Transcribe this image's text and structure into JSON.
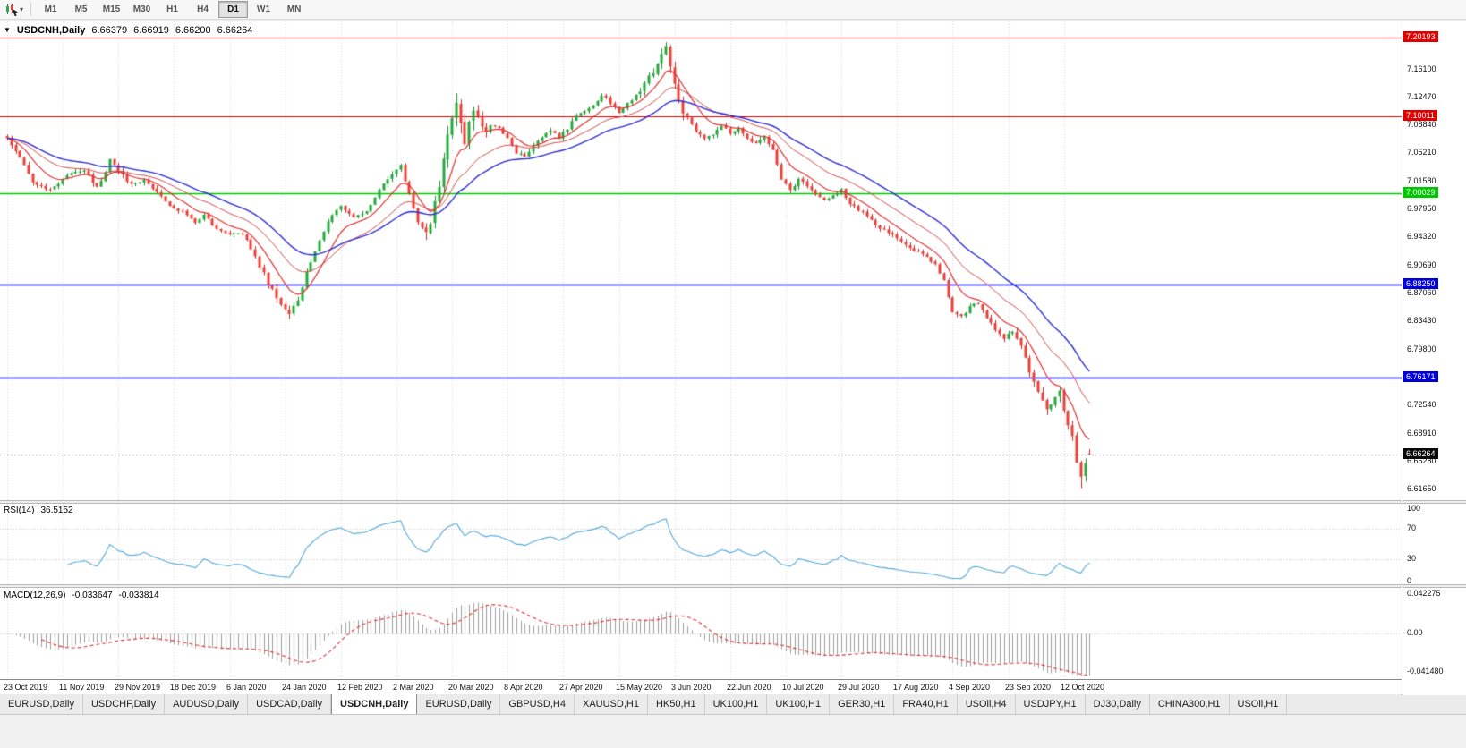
{
  "toolbar": {
    "dropdown_glyph": "▾",
    "timeframes": [
      "M1",
      "M5",
      "M15",
      "M30",
      "H1",
      "H4",
      "D1",
      "W1",
      "MN"
    ],
    "active_timeframe": "D1"
  },
  "chart": {
    "corner_glyph": "▼",
    "title": "USDCNH,Daily",
    "open": "6.66379",
    "high": "6.66919",
    "low": "6.66200",
    "close": "6.66264",
    "bid_label": "6.66264",
    "bid_value": 6.66264,
    "price_min": 6.603,
    "price_max": 7.223,
    "axis_labels": [
      "7.16100",
      "7.12470",
      "7.08840",
      "7.05210",
      "7.01580",
      "6.97950",
      "6.94320",
      "6.90690",
      "6.87060",
      "6.83430",
      "6.79800",
      "6.72540",
      "6.68910",
      "6.65280",
      "6.61650"
    ],
    "hlines": [
      {
        "value": 7.20193,
        "label": "7.20193",
        "color": "#e00000"
      },
      {
        "value": 7.10011,
        "label": "7.10011",
        "color": "#e00000"
      },
      {
        "value": 7.00029,
        "label": "7.00029",
        "color": "#00c800"
      },
      {
        "value": 6.8825,
        "label": "6.88250",
        "color": "#0000dc"
      },
      {
        "value": 6.76171,
        "label": "6.76171",
        "color": "#0000dc"
      }
    ],
    "date_labels": [
      "23 Oct 2019",
      "11 Nov 2019",
      "29 Nov 2019",
      "18 Dec 2019",
      "6 Jan 2020",
      "24 Jan 2020",
      "12 Feb 2020",
      "2 Mar 2020",
      "20 Mar 2020",
      "8 Apr 2020",
      "27 Apr 2020",
      "15 May 2020",
      "3 Jun 2020",
      "22 Jun 2020",
      "10 Jul 2020",
      "29 Jul 2020",
      "17 Aug 2020",
      "4 Sep 2020",
      "23 Sep 2020",
      "12 Oct 2020"
    ]
  },
  "rsi": {
    "name": "RSI(14)",
    "value": "36.5152",
    "axis_labels": [
      "100",
      "70",
      "30",
      "0"
    ],
    "levels": [
      70,
      30
    ],
    "line_color": "#53a8da"
  },
  "macd": {
    "name": "MACD(12,26,9)",
    "value_main": "-0.033647",
    "value_signal": "-0.033814",
    "axis_labels": [
      "0.042275",
      "0.00",
      "-0.041480"
    ],
    "range": {
      "min": -0.0462,
      "max": 0.0465
    },
    "histogram_color": "#9e9e9e",
    "signal_color": "#e03232"
  },
  "tabs": {
    "items": [
      {
        "label": "EURUSD,Daily",
        "active": false
      },
      {
        "label": "USDCHF,Daily",
        "active": false
      },
      {
        "label": "AUDUSD,Daily",
        "active": false
      },
      {
        "label": "USDCAD,Daily",
        "active": false
      },
      {
        "label": "USDCNH,Daily",
        "active": true
      },
      {
        "label": "EURUSD,Daily",
        "active": false
      },
      {
        "label": "GBPUSD,H4",
        "active": false
      },
      {
        "label": "XAUUSD,H1",
        "active": false
      },
      {
        "label": "HK50,H1",
        "active": false
      },
      {
        "label": "UK100,H1",
        "active": false
      },
      {
        "label": "UK100,H1",
        "active": false
      },
      {
        "label": "GER30,H1",
        "active": false
      },
      {
        "label": "FRA40,H1",
        "active": false
      },
      {
        "label": "USOil,H4",
        "active": false
      },
      {
        "label": "USDJPY,H1",
        "active": false
      },
      {
        "label": "DJ30,Daily",
        "active": false
      },
      {
        "label": "CHINA300,H1",
        "active": false
      },
      {
        "label": "USOil,H1",
        "active": false
      }
    ]
  },
  "chart_data": {
    "type": "candlestick",
    "symbol": "USDCNH",
    "timeframe": "Daily",
    "bars": 254,
    "bars_per_x_tick": 13,
    "x_tick_labels": [
      "23 Oct 2019",
      "11 Nov 2019",
      "29 Nov 2019",
      "18 Dec 2019",
      "6 Jan 2020",
      "24 Jan 2020",
      "12 Feb 2020",
      "2 Mar 2020",
      "20 Mar 2020",
      "8 Apr 2020",
      "27 Apr 2020",
      "15 May 2020",
      "3 Jun 2020",
      "22 Jun 2020",
      "10 Jul 2020",
      "29 Jul 2020",
      "17 Aug 2020",
      "4 Sep 2020",
      "23 Sep 2020",
      "12 Oct 2020"
    ],
    "price_axis": {
      "min": 6.603,
      "max": 7.223
    },
    "last_ohlc": {
      "open": 6.66379,
      "high": 6.66919,
      "low": 6.662,
      "close": 6.66264
    },
    "horizontal_levels": [
      7.20193,
      7.10011,
      7.00029,
      6.8825,
      6.76171
    ],
    "close_anchors": [
      [
        0,
        7.072
      ],
      [
        3,
        7.046
      ],
      [
        6,
        7.016
      ],
      [
        9,
        7.004
      ],
      [
        12,
        7.012
      ],
      [
        15,
        7.028
      ],
      [
        18,
        7.031
      ],
      [
        21,
        7.008
      ],
      [
        24,
        7.042
      ],
      [
        26,
        7.028
      ],
      [
        29,
        7.012
      ],
      [
        32,
        7.018
      ],
      [
        35,
        7.002
      ],
      [
        38,
        6.986
      ],
      [
        41,
        6.976
      ],
      [
        44,
        6.962
      ],
      [
        46,
        6.972
      ],
      [
        49,
        6.955
      ],
      [
        52,
        6.946
      ],
      [
        55,
        6.949
      ],
      [
        58,
        6.918
      ],
      [
        61,
        6.885
      ],
      [
        64,
        6.858
      ],
      [
        66,
        6.845
      ],
      [
        68,
        6.864
      ],
      [
        70,
        6.896
      ],
      [
        73,
        6.938
      ],
      [
        76,
        6.974
      ],
      [
        78,
        6.986
      ],
      [
        81,
        6.968
      ],
      [
        84,
        6.977
      ],
      [
        87,
        7.004
      ],
      [
        90,
        7.026
      ],
      [
        92,
        7.036
      ],
      [
        94,
        6.998
      ],
      [
        96,
        6.962
      ],
      [
        98,
        6.948
      ],
      [
        100,
        6.985
      ],
      [
        102,
        7.045
      ],
      [
        104,
        7.1
      ],
      [
        105,
        7.12
      ],
      [
        106,
        7.085
      ],
      [
        107,
        7.062
      ],
      [
        108,
        7.092
      ],
      [
        109,
        7.112
      ],
      [
        111,
        7.082
      ],
      [
        113,
        7.088
      ],
      [
        115,
        7.085
      ],
      [
        117,
        7.072
      ],
      [
        119,
        7.054
      ],
      [
        121,
        7.047
      ],
      [
        124,
        7.07
      ],
      [
        127,
        7.082
      ],
      [
        129,
        7.073
      ],
      [
        131,
        7.085
      ],
      [
        133,
        7.102
      ],
      [
        135,
        7.108
      ],
      [
        137,
        7.115
      ],
      [
        139,
        7.128
      ],
      [
        141,
        7.118
      ],
      [
        143,
        7.103
      ],
      [
        145,
        7.117
      ],
      [
        147,
        7.128
      ],
      [
        149,
        7.14
      ],
      [
        151,
        7.158
      ],
      [
        153,
        7.18
      ],
      [
        154,
        7.193
      ],
      [
        155,
        7.163
      ],
      [
        156,
        7.138
      ],
      [
        157,
        7.118
      ],
      [
        159,
        7.098
      ],
      [
        161,
        7.082
      ],
      [
        163,
        7.072
      ],
      [
        165,
        7.076
      ],
      [
        167,
        7.088
      ],
      [
        169,
        7.078
      ],
      [
        171,
        7.084
      ],
      [
        173,
        7.072
      ],
      [
        175,
        7.064
      ],
      [
        177,
        7.072
      ],
      [
        179,
        7.055
      ],
      [
        181,
        7.018
      ],
      [
        183,
        7.004
      ],
      [
        185,
        7.018
      ],
      [
        187,
        7.01
      ],
      [
        189,
        6.998
      ],
      [
        191,
        6.99
      ],
      [
        193,
        6.998
      ],
      [
        195,
        7.004
      ],
      [
        197,
        6.988
      ],
      [
        199,
        6.979
      ],
      [
        201,
        6.972
      ],
      [
        203,
        6.96
      ],
      [
        205,
        6.952
      ],
      [
        208,
        6.943
      ],
      [
        211,
        6.93
      ],
      [
        214,
        6.921
      ],
      [
        217,
        6.908
      ],
      [
        219,
        6.888
      ],
      [
        221,
        6.848
      ],
      [
        223,
        6.84
      ],
      [
        225,
        6.854
      ],
      [
        227,
        6.858
      ],
      [
        229,
        6.84
      ],
      [
        231,
        6.824
      ],
      [
        233,
        6.812
      ],
      [
        235,
        6.822
      ],
      [
        237,
        6.802
      ],
      [
        239,
        6.768
      ],
      [
        241,
        6.742
      ],
      [
        243,
        6.718
      ],
      [
        245,
        6.74
      ],
      [
        246,
        6.742
      ],
      [
        247,
        6.72
      ],
      [
        248,
        6.7
      ],
      [
        249,
        6.684
      ],
      [
        250,
        6.655
      ],
      [
        251,
        6.634
      ],
      [
        252,
        6.652
      ],
      [
        253,
        6.6626
      ]
    ],
    "indicators": {
      "moving_averages": [
        {
          "type": "ema",
          "period": 9,
          "color": "#e03232"
        },
        {
          "type": "ema",
          "period": 21,
          "color": "#cf4a4a"
        },
        {
          "type": "ema",
          "period": 34,
          "color": "#2d2dd2"
        }
      ],
      "rsi": {
        "period": 14,
        "current": 36.5152,
        "levels": [
          70,
          30
        ]
      },
      "macd": {
        "fast": 12,
        "slow": 26,
        "signal": 9,
        "current_macd": -0.033647,
        "current_signal": -0.033814
      }
    }
  }
}
